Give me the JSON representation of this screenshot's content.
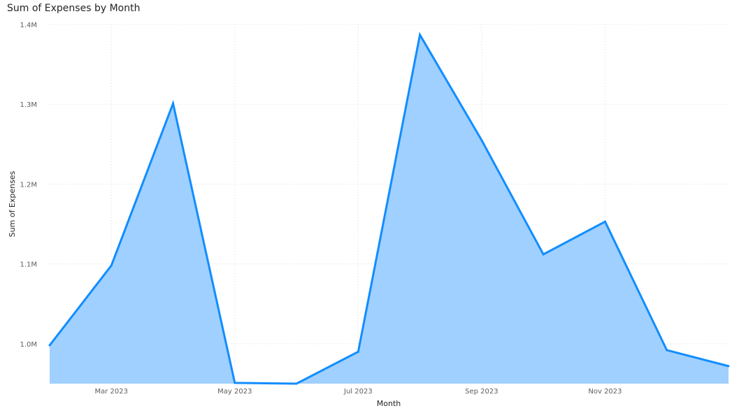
{
  "chart_data": {
    "type": "area",
    "title": "Sum of Expenses by Month",
    "xlabel": "Month",
    "ylabel": "Sum of Expenses",
    "x": [
      "2023-02",
      "2023-03",
      "2023-04",
      "2023-05",
      "2023-06",
      "2023-07",
      "2023-08",
      "2023-09",
      "2023-10",
      "2023-11",
      "2023-12",
      "2024-01"
    ],
    "x_tick_labels": [
      {
        "x": "2023-03",
        "label": "Mar 2023"
      },
      {
        "x": "2023-05",
        "label": "May 2023"
      },
      {
        "x": "2023-07",
        "label": "Jul 2023"
      },
      {
        "x": "2023-09",
        "label": "Sep 2023"
      },
      {
        "x": "2023-11",
        "label": "Nov 2023"
      }
    ],
    "y_ticks": [
      {
        "value": 1000000,
        "label": "1.0M"
      },
      {
        "value": 1100000,
        "label": "1.1M"
      },
      {
        "value": 1200000,
        "label": "1.2M"
      },
      {
        "value": 1300000,
        "label": "1.3M"
      },
      {
        "value": 1400000,
        "label": "1.4M"
      }
    ],
    "series": [
      {
        "values": [
          998000,
          1098000,
          1301000,
          951000,
          950000,
          990000,
          1387000,
          1255000,
          1112000,
          1153000,
          992000,
          972000
        ]
      }
    ],
    "ylim": [
      950000,
      1400000
    ],
    "grid": true,
    "legend": "none",
    "colors": {
      "line": "#118dff",
      "fill": "#a0d0ff",
      "grid": "#dcdcdc"
    }
  }
}
